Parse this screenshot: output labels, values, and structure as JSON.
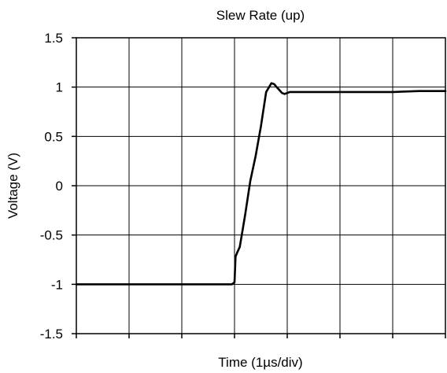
{
  "chart_data": {
    "type": "line",
    "title": "Slew Rate (up)",
    "xlabel": "Time (1µs/div)",
    "ylabel": "Voltage (V)",
    "xlim": [
      0,
      7
    ],
    "ylim": [
      -1.5,
      1.5
    ],
    "x_divisions": 7,
    "yticks": [
      1.5,
      1,
      0.5,
      0,
      -0.5,
      -1,
      -1.5
    ],
    "ytick_labels": [
      "1.5",
      "1",
      "0.5",
      "0",
      "-0.5",
      "-1",
      "-1.5"
    ],
    "xtick_labels": [],
    "grid": true,
    "legend": "none",
    "line_color": "#000000",
    "series": [
      {
        "x": [
          0,
          0.5,
          1,
          1.5,
          2,
          2.5,
          2.95,
          3.0,
          3.02,
          3.05,
          3.1,
          3.2,
          3.3,
          3.4,
          3.5,
          3.6,
          3.7,
          3.75,
          3.8,
          3.85,
          3.9,
          3.95,
          4.0,
          4.05,
          4.1,
          4.5,
          5,
          5.5,
          6,
          6.5,
          7
        ],
        "y": [
          -1.0,
          -1.0,
          -1.0,
          -1.0,
          -1.0,
          -1.0,
          -1.0,
          -0.98,
          -0.72,
          -0.68,
          -0.62,
          -0.3,
          0.05,
          0.3,
          0.6,
          0.95,
          1.04,
          1.03,
          1.0,
          0.97,
          0.94,
          0.93,
          0.94,
          0.95,
          0.95,
          0.95,
          0.95,
          0.95,
          0.95,
          0.96,
          0.96
        ]
      }
    ]
  }
}
